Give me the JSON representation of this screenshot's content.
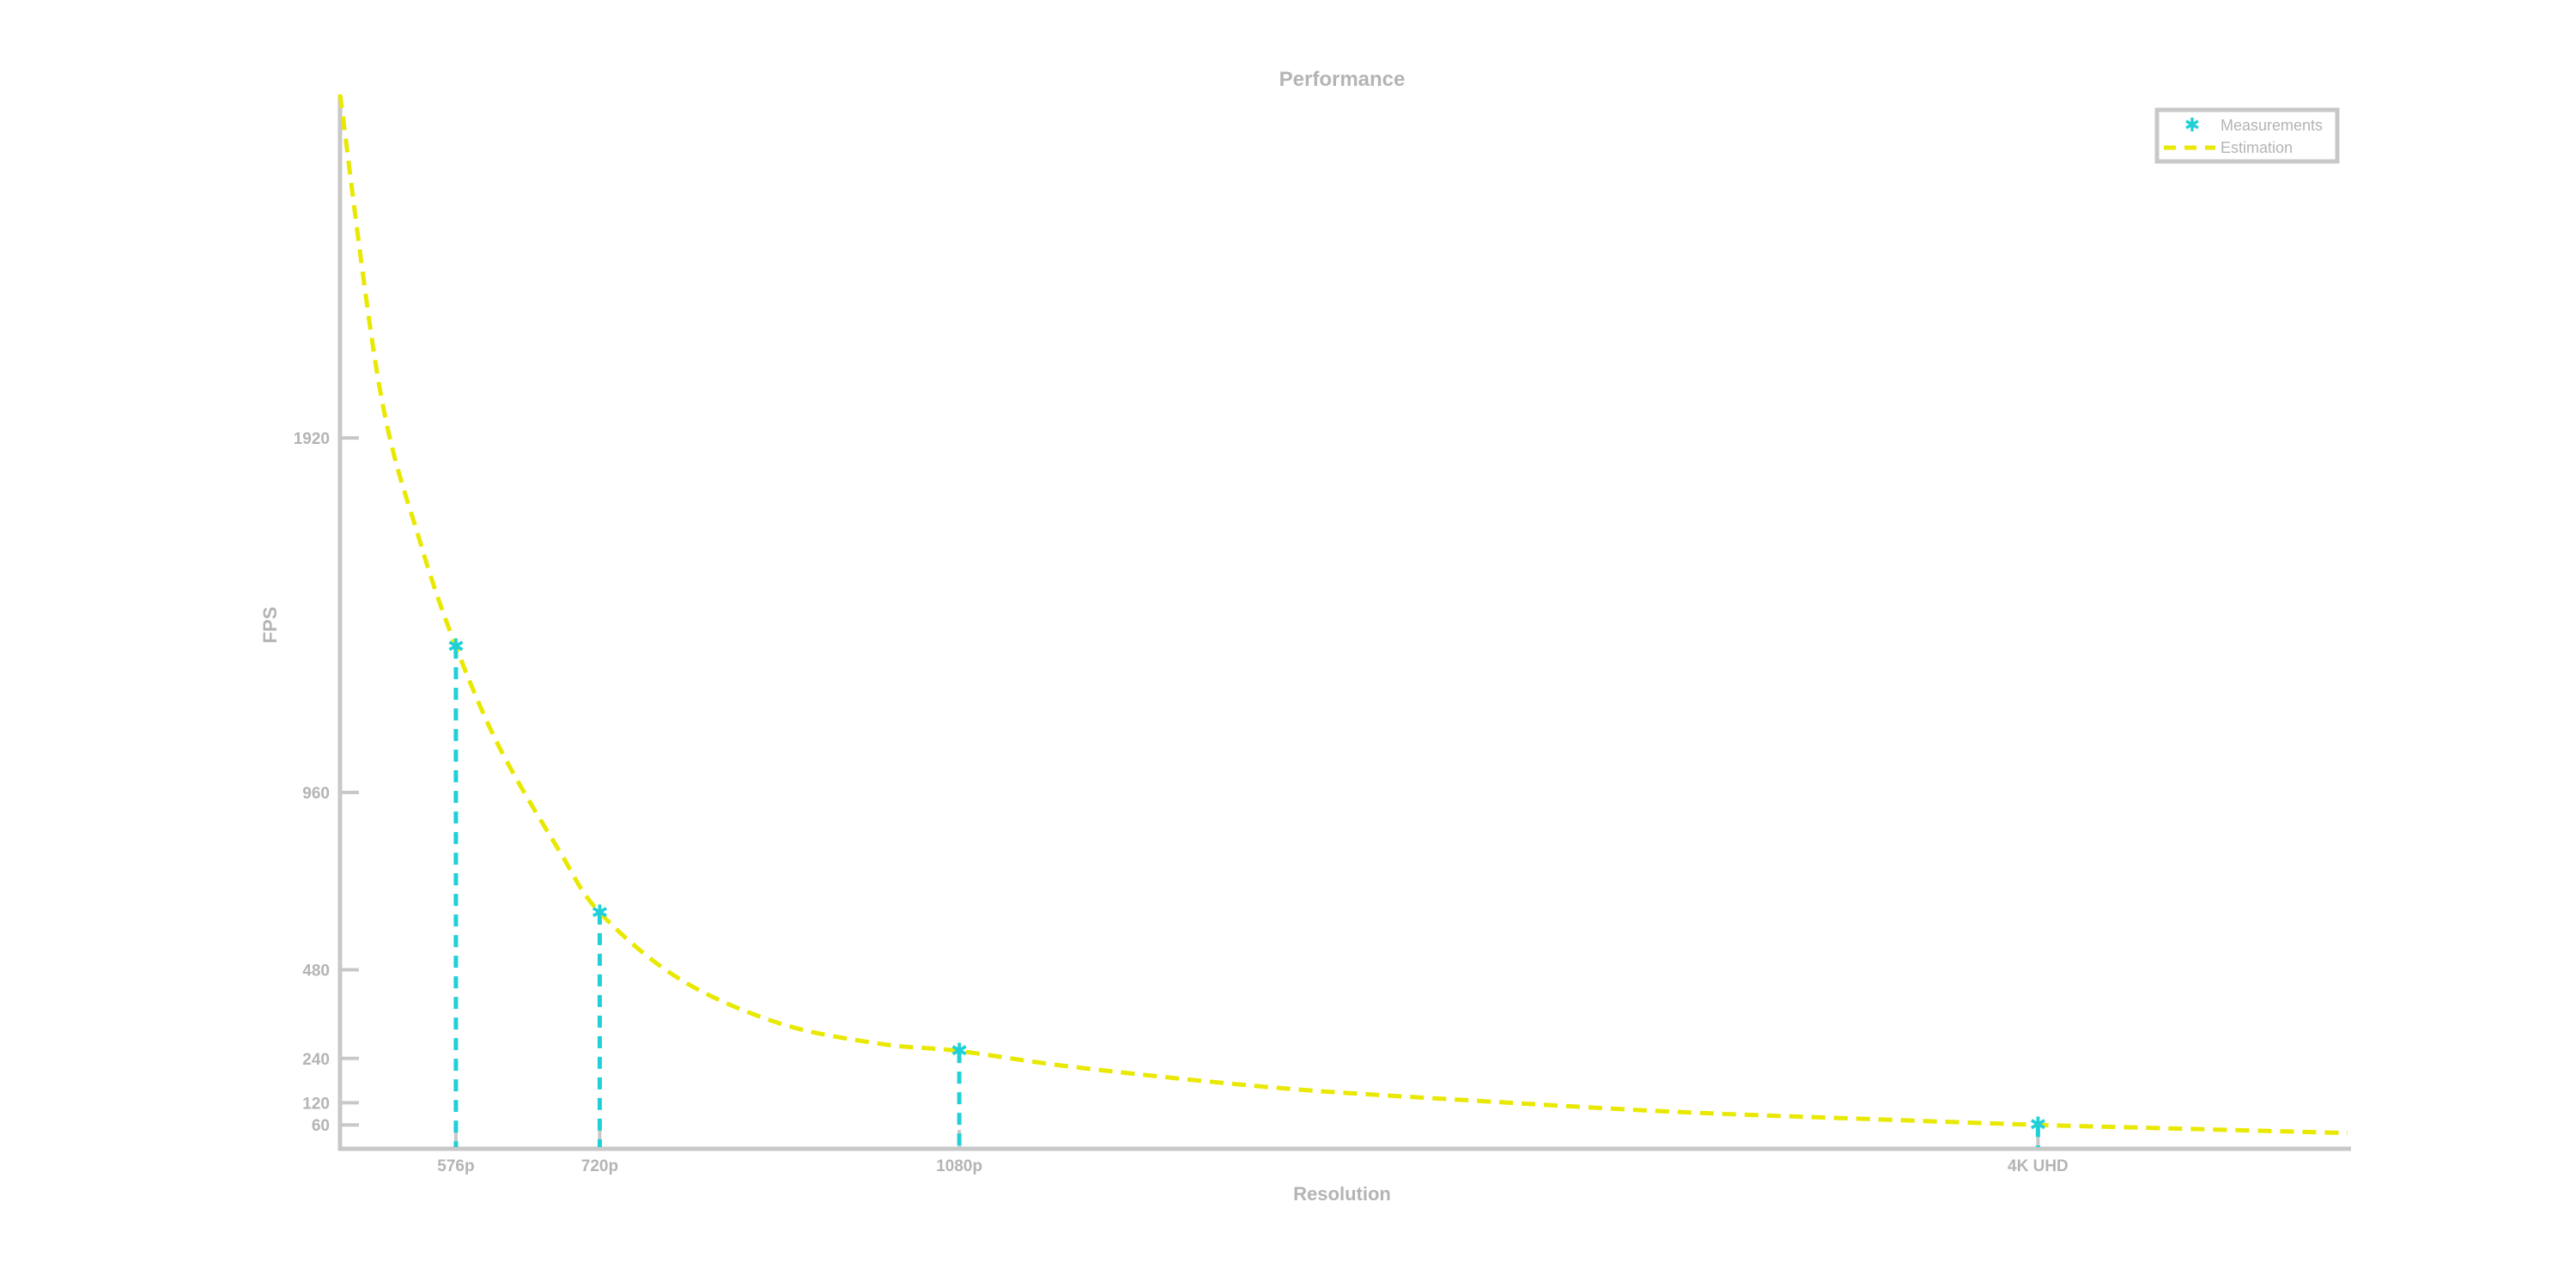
{
  "chart_data": {
    "type": "line",
    "title": "Performance",
    "xlabel": "Resolution",
    "ylabel": "FPS",
    "x_ticks": [
      {
        "label": "576p",
        "value": 576
      },
      {
        "label": "720p",
        "value": 720
      },
      {
        "label": "1080p",
        "value": 1080
      },
      {
        "label": "4K UHD",
        "value": 2160
      }
    ],
    "y_ticks": [
      60,
      120,
      240,
      480,
      960,
      1920
    ],
    "xlim": [
      460,
      2470
    ],
    "ylim": [
      0,
      2850
    ],
    "grid": false,
    "legend_position": "top-right",
    "series": [
      {
        "name": "Measurements",
        "style": "markers-with-stems",
        "color": "#20d0d8",
        "x": [
          576,
          720,
          1080,
          2160
        ],
        "y": [
          1355,
          635,
          260,
          60
        ]
      },
      {
        "name": "Estimation",
        "style": "dashed-line",
        "color": "#e8e800",
        "x": [
          460,
          500,
          540,
          576,
          620,
          680,
          720,
          800,
          900,
          1000,
          1080,
          1200,
          1400,
          1600,
          1800,
          2000,
          2160,
          2300,
          2470
        ],
        "y": [
          2850,
          2050,
          1640,
          1355,
          1080,
          800,
          635,
          455,
          335,
          280,
          260,
          215,
          160,
          125,
          95,
          75,
          60,
          50,
          38
        ]
      }
    ]
  }
}
